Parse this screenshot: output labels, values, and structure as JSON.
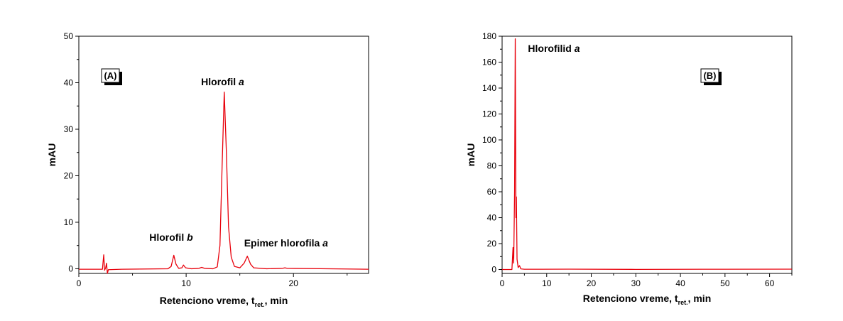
{
  "chart_data": [
    {
      "type": "line",
      "panel_label": "(A)",
      "xlabel": {
        "main": "Retenciono vreme, t",
        "sub": "ret.",
        "tail": ", min"
      },
      "ylabel": "mAU",
      "xlim": [
        0,
        27
      ],
      "ylim": [
        -1,
        50
      ],
      "xticks": [
        0,
        10,
        20
      ],
      "yticks": [
        0,
        10,
        20,
        30,
        40,
        50
      ],
      "grid": false,
      "line_color": "#e8000b",
      "series": [
        {
          "values": [
            [
              0,
              -0.1
            ],
            [
              2.2,
              -0.1
            ],
            [
              2.32,
              3.0
            ],
            [
              2.4,
              -0.3
            ],
            [
              2.5,
              0.2
            ],
            [
              2.58,
              1.2
            ],
            [
              2.66,
              -1.0
            ],
            [
              2.75,
              -0.2
            ],
            [
              4,
              -0.1
            ],
            [
              8.3,
              0.0
            ],
            [
              8.6,
              0.5
            ],
            [
              8.85,
              2.9
            ],
            [
              9.05,
              1.0
            ],
            [
              9.3,
              0.1
            ],
            [
              9.6,
              0.2
            ],
            [
              9.75,
              0.8
            ],
            [
              9.95,
              0.2
            ],
            [
              10.5,
              0.0
            ],
            [
              11.2,
              0.1
            ],
            [
              11.45,
              0.3
            ],
            [
              11.7,
              0.1
            ],
            [
              12.5,
              0.0
            ],
            [
              12.9,
              0.4
            ],
            [
              13.15,
              5.0
            ],
            [
              13.35,
              22.0
            ],
            [
              13.55,
              38.0
            ],
            [
              13.75,
              25.0
            ],
            [
              13.95,
              9.0
            ],
            [
              14.2,
              2.5
            ],
            [
              14.5,
              0.5
            ],
            [
              15.0,
              0.2
            ],
            [
              15.4,
              1.2
            ],
            [
              15.7,
              2.7
            ],
            [
              16.0,
              1.0
            ],
            [
              16.3,
              0.2
            ],
            [
              17.5,
              0.0
            ],
            [
              19.0,
              0.1
            ],
            [
              19.2,
              0.2
            ],
            [
              19.4,
              0.1
            ],
            [
              27,
              -0.1
            ]
          ]
        }
      ],
      "annotations": [
        {
          "text": "Hlorofil ",
          "italic": "a",
          "x": 13.4,
          "y": 39.5
        },
        {
          "text": "Hlorofil ",
          "italic": "b",
          "x": 8.6,
          "y": 6.0
        },
        {
          "text": "Epimer hlorofila ",
          "italic": "a",
          "x": 15.4,
          "y": 4.8
        }
      ]
    },
    {
      "type": "line",
      "panel_label": "(B)",
      "xlabel": {
        "main": "Retenciono vreme, t",
        "sub": "ret.",
        "tail": ", min"
      },
      "ylabel": "mAU",
      "xlim": [
        0,
        65
      ],
      "ylim": [
        -3,
        180
      ],
      "xticks": [
        0,
        10,
        20,
        30,
        40,
        50,
        60
      ],
      "yticks": [
        0,
        20,
        40,
        60,
        80,
        100,
        120,
        140,
        160,
        180
      ],
      "grid": false,
      "line_color": "#e8000b",
      "series": [
        {
          "values": [
            [
              0,
              0.0
            ],
            [
              2.2,
              0.0
            ],
            [
              2.45,
              17.0
            ],
            [
              2.6,
              5.0
            ],
            [
              2.8,
              60.0
            ],
            [
              2.95,
              178.0
            ],
            [
              3.1,
              40.0
            ],
            [
              3.2,
              56.0
            ],
            [
              3.35,
              8.0
            ],
            [
              3.6,
              1.5
            ],
            [
              3.9,
              3.0
            ],
            [
              4.2,
              0.5
            ],
            [
              5.0,
              0.2
            ],
            [
              15,
              0.3
            ],
            [
              30,
              0.1
            ],
            [
              45,
              0.2
            ],
            [
              65,
              0.3
            ]
          ]
        }
      ],
      "annotations": [
        {
          "text": "Hlorofilid ",
          "italic": "a",
          "x": 5.8,
          "y": 168
        }
      ]
    }
  ]
}
